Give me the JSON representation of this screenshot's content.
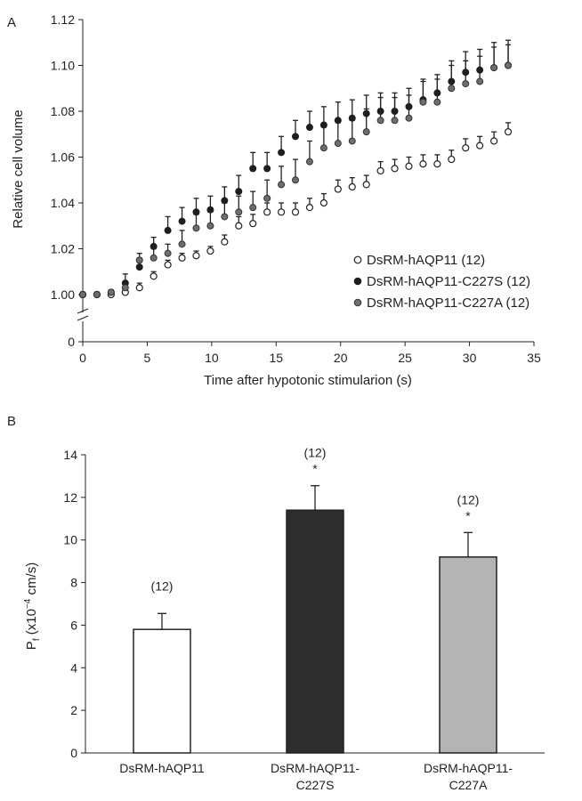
{
  "chart_data": [
    {
      "panel": "A",
      "type": "scatter",
      "xlabel": "Time after hypotonic stimularion (s)",
      "ylabel": "Relative cell volume",
      "xlim": [
        0,
        35
      ],
      "ylim": [
        1.0,
        1.12
      ],
      "axis_break": true,
      "x_ticks": [
        "0",
        "5",
        "10",
        "15",
        "20",
        "25",
        "30",
        "35"
      ],
      "y_ticks": [
        "0",
        "1.00",
        "1.02",
        "1.04",
        "1.06",
        "1.08",
        "1.10",
        "1.12"
      ],
      "legend_position": "bottom-right",
      "x": [
        0,
        1.1,
        2.2,
        3.3,
        4.4,
        5.5,
        6.6,
        7.7,
        8.8,
        9.9,
        11.0,
        12.1,
        13.2,
        14.3,
        15.4,
        16.5,
        17.6,
        18.7,
        19.8,
        20.9,
        22.0,
        23.1,
        24.2,
        25.3,
        26.4,
        27.5,
        28.6,
        29.7,
        30.8,
        31.9,
        33.0
      ],
      "series": [
        {
          "name": "DsRM-hAQP11 (12)",
          "marker": "open",
          "color": "#ffffff",
          "values": [
            1.0,
            1.0,
            1.0,
            1.001,
            1.003,
            1.008,
            1.013,
            1.016,
            1.017,
            1.019,
            1.023,
            1.03,
            1.031,
            1.036,
            1.036,
            1.036,
            1.038,
            1.04,
            1.046,
            1.047,
            1.048,
            1.054,
            1.055,
            1.056,
            1.057,
            1.057,
            1.059,
            1.064,
            1.065,
            1.067,
            1.071
          ],
          "errors": [
            0.001,
            0.001,
            0.001,
            0.002,
            0.002,
            0.002,
            0.002,
            0.002,
            0.002,
            0.002,
            0.003,
            0.004,
            0.004,
            0.004,
            0.004,
            0.004,
            0.004,
            0.004,
            0.004,
            0.004,
            0.004,
            0.004,
            0.004,
            0.004,
            0.004,
            0.004,
            0.004,
            0.004,
            0.004,
            0.004,
            0.004
          ]
        },
        {
          "name": "DsRM-hAQP11-C227S (12)",
          "marker": "filled",
          "color": "#1e1e1e",
          "values": [
            1.0,
            1.0,
            1.001,
            1.005,
            1.012,
            1.021,
            1.028,
            1.032,
            1.036,
            1.037,
            1.041,
            1.045,
            1.055,
            1.055,
            1.062,
            1.069,
            1.073,
            1.074,
            1.076,
            1.077,
            1.079,
            1.08,
            1.08,
            1.082,
            1.085,
            1.088,
            1.093,
            1.097,
            1.098,
            1.099,
            1.1
          ],
          "errors": [
            0.001,
            0.001,
            0.001,
            0.004,
            0.004,
            0.004,
            0.006,
            0.006,
            0.006,
            0.006,
            0.006,
            0.007,
            0.007,
            0.007,
            0.007,
            0.007,
            0.007,
            0.008,
            0.008,
            0.008,
            0.008,
            0.008,
            0.008,
            0.008,
            0.008,
            0.008,
            0.009,
            0.009,
            0.009,
            0.009,
            0.009
          ]
        },
        {
          "name": "DsRM-hAQP11-C227A (12)",
          "marker": "gray",
          "color": "#6e6e6e",
          "values": [
            1.0,
            1.0,
            1.001,
            1.003,
            1.015,
            1.016,
            1.018,
            1.022,
            1.029,
            1.03,
            1.034,
            1.036,
            1.038,
            1.042,
            1.048,
            1.05,
            1.058,
            1.064,
            1.066,
            1.067,
            1.071,
            1.076,
            1.076,
            1.077,
            1.084,
            1.084,
            1.09,
            1.092,
            1.093,
            1.099,
            1.1
          ],
          "errors": [
            0.001,
            0.001,
            0.001,
            0.002,
            0.003,
            0.004,
            0.004,
            0.006,
            0.006,
            0.006,
            0.006,
            0.007,
            0.007,
            0.008,
            0.008,
            0.009,
            0.009,
            0.009,
            0.009,
            0.009,
            0.01,
            0.01,
            0.01,
            0.01,
            0.01,
            0.01,
            0.01,
            0.01,
            0.011,
            0.011,
            0.011
          ]
        }
      ]
    },
    {
      "panel": "B",
      "type": "bar",
      "ylabel_parts": [
        "P",
        "f",
        " (x10",
        "−4",
        " cm/s)"
      ],
      "ylim": [
        0,
        14
      ],
      "y_ticks": [
        "0",
        "2",
        "4",
        "6",
        "8",
        "10",
        "12",
        "14"
      ],
      "categories": [
        [
          "DsRM-hAQP11"
        ],
        [
          "DsRM-hAQP11-",
          "C227S"
        ],
        [
          "DsRM-hAQP11-",
          "C227A"
        ]
      ],
      "values": [
        5.8,
        11.4,
        9.2
      ],
      "errors": [
        0.75,
        1.15,
        1.15
      ],
      "n_labels": [
        "(12)",
        "(12)",
        "(12)"
      ],
      "significance": [
        "",
        "*",
        "*"
      ],
      "bar_colors": [
        "#ffffff",
        "#2d2d2d",
        "#b4b4b4"
      ]
    }
  ]
}
